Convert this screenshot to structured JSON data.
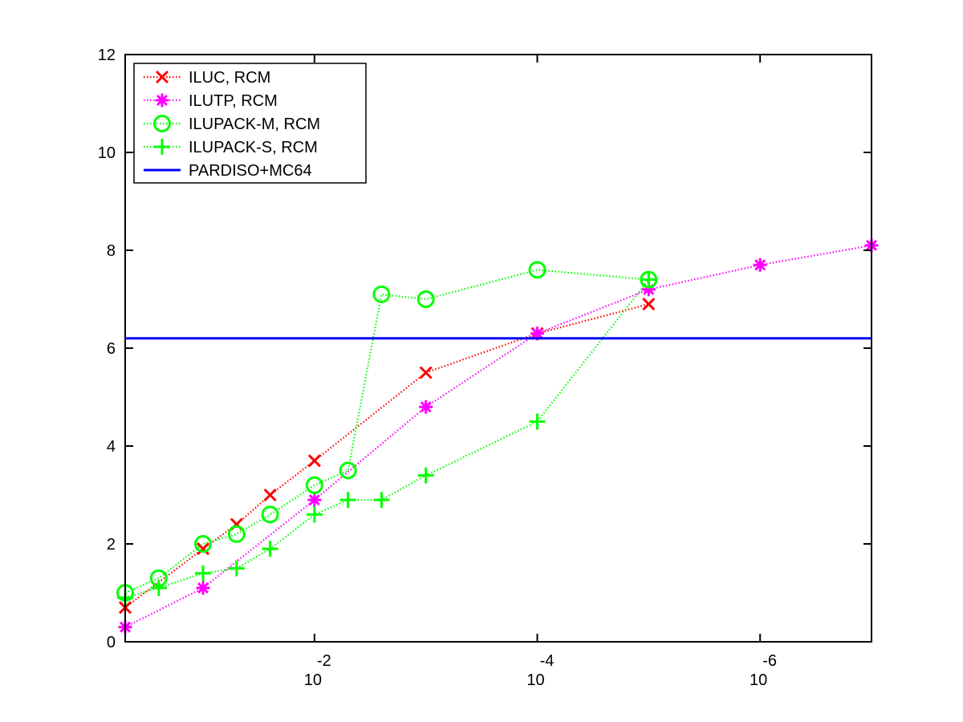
{
  "chart_data": {
    "type": "line",
    "x_scale": "log",
    "x_direction": "reversed",
    "xlim": [
      0.5,
      1e-07
    ],
    "ylim": [
      0,
      12
    ],
    "x_ticks": [
      {
        "value": 0.01,
        "base": "10",
        "exponent": "-2"
      },
      {
        "value": 0.0001,
        "base": "10",
        "exponent": "-4"
      },
      {
        "value": 1e-06,
        "base": "10",
        "exponent": "-6"
      }
    ],
    "y_ticks": [
      {
        "value": 0,
        "label": "0"
      },
      {
        "value": 2,
        "label": "2"
      },
      {
        "value": 4,
        "label": "4"
      },
      {
        "value": 6,
        "label": "6"
      },
      {
        "value": 8,
        "label": "8"
      },
      {
        "value": 10,
        "label": "10"
      },
      {
        "value": 12,
        "label": "12"
      }
    ],
    "grid": false,
    "legend_position": "top-left",
    "series": [
      {
        "name": "ILUC, RCM",
        "color": "#ff0000",
        "marker": "x",
        "line": "dotted",
        "points": [
          [
            0.5,
            0.7
          ],
          [
            0.1,
            1.9
          ],
          [
            0.05,
            2.4
          ],
          [
            0.025,
            3.0
          ],
          [
            0.01,
            3.7
          ],
          [
            0.001,
            5.5
          ],
          [
            0.0001,
            6.3
          ],
          [
            1e-05,
            6.9
          ]
        ]
      },
      {
        "name": "ILUTP, RCM",
        "color": "#ff00ff",
        "marker": "star",
        "line": "dotted",
        "points": [
          [
            0.5,
            0.3
          ],
          [
            0.1,
            1.1
          ],
          [
            0.01,
            2.9
          ],
          [
            0.001,
            4.8
          ],
          [
            0.0001,
            6.3
          ],
          [
            1e-05,
            7.2
          ],
          [
            1e-06,
            7.7
          ],
          [
            1e-07,
            8.1
          ]
        ]
      },
      {
        "name": "ILUPACK-M, RCM",
        "color": "#00ff00",
        "marker": "circle",
        "line": "dotted",
        "points": [
          [
            0.5,
            1.0
          ],
          [
            0.25,
            1.3
          ],
          [
            0.1,
            2.0
          ],
          [
            0.05,
            2.2
          ],
          [
            0.025,
            2.6
          ],
          [
            0.01,
            3.2
          ],
          [
            0.005,
            3.5
          ],
          [
            0.0025,
            7.1
          ],
          [
            0.001,
            7.0
          ],
          [
            0.0001,
            7.6
          ],
          [
            1e-05,
            7.4
          ]
        ]
      },
      {
        "name": "ILUPACK-S, RCM",
        "color": "#00ff00",
        "marker": "plus",
        "line": "dotted",
        "points": [
          [
            0.5,
            0.9
          ],
          [
            0.25,
            1.1
          ],
          [
            0.1,
            1.4
          ],
          [
            0.05,
            1.5
          ],
          [
            0.025,
            1.9
          ],
          [
            0.01,
            2.6
          ],
          [
            0.005,
            2.9
          ],
          [
            0.0025,
            2.9
          ],
          [
            0.001,
            3.4
          ],
          [
            0.0001,
            4.5
          ],
          [
            1e-05,
            7.4
          ]
        ]
      },
      {
        "name": "PARDISO+MC64",
        "color": "#0000ff",
        "marker": "none",
        "line": "solid",
        "points": [
          [
            0.5,
            6.2
          ],
          [
            1e-07,
            6.2
          ]
        ]
      }
    ]
  }
}
